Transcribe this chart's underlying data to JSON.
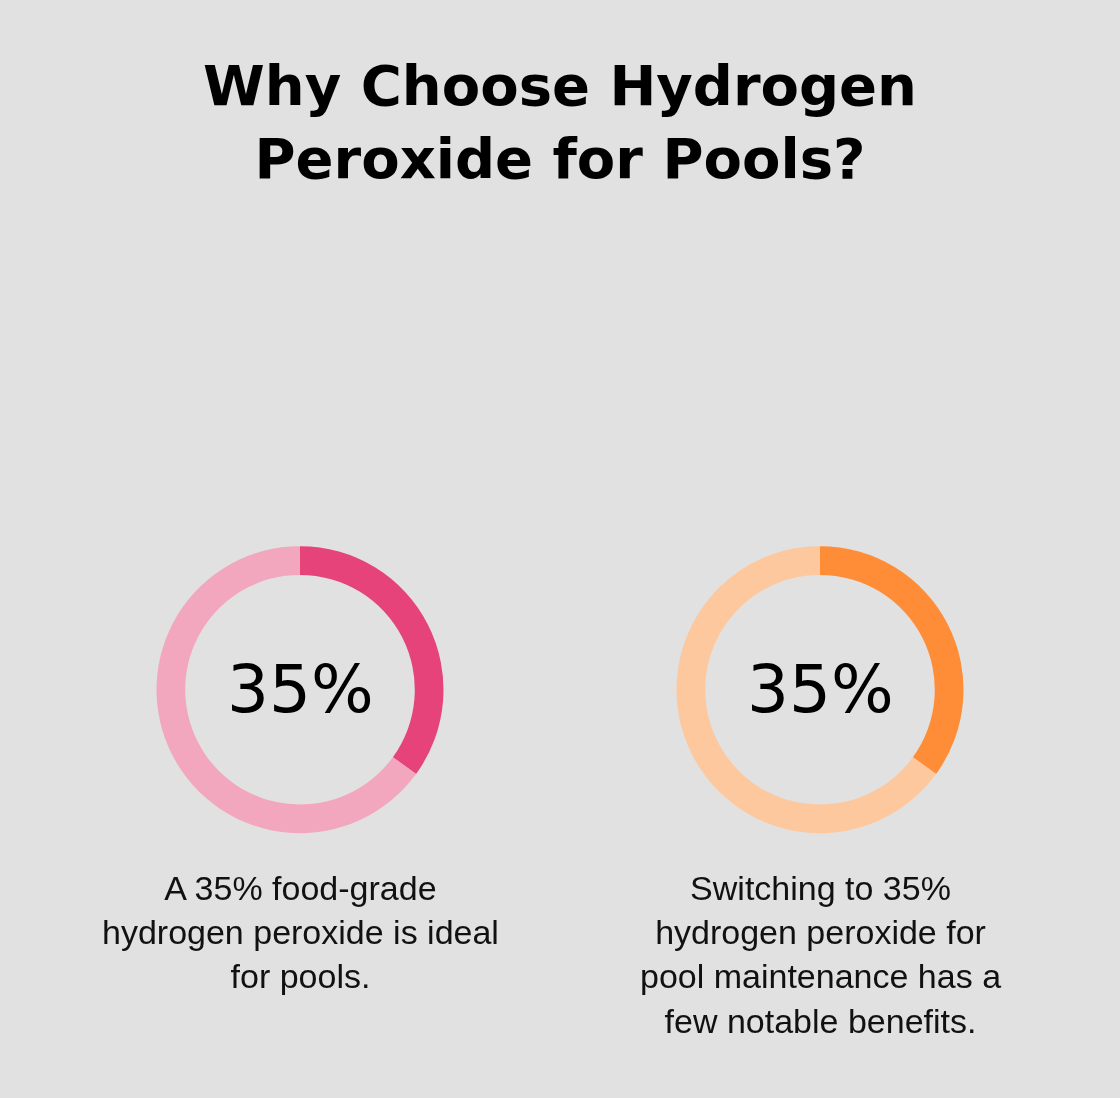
{
  "chart_data": [
    {
      "type": "donut",
      "title": "Why Choose Hydrogen\nPeroxide for Pools?",
      "categories": [
        null,
        null
      ],
      "values": [
        35,
        65
      ],
      "colors": [
        "#e5437a",
        "#f2a7bf"
      ],
      "value_labels": [
        "35%",
        null
      ],
      "annotations": [
        "A 35% food-grade\nhydrogen peroxide is ideal\nfor pools."
      ]
    },
    {
      "type": "donut",
      "categories": [
        null,
        null
      ],
      "values": [
        35,
        65
      ],
      "colors": [
        "#ff8c36",
        "#fec89e"
      ],
      "value_labels": [
        "35%",
        null
      ],
      "annotations": [
        "Switching to 35%\nhydrogen peroxide for\npool maintenance has a\nfew notable benefits."
      ]
    }
  ]
}
